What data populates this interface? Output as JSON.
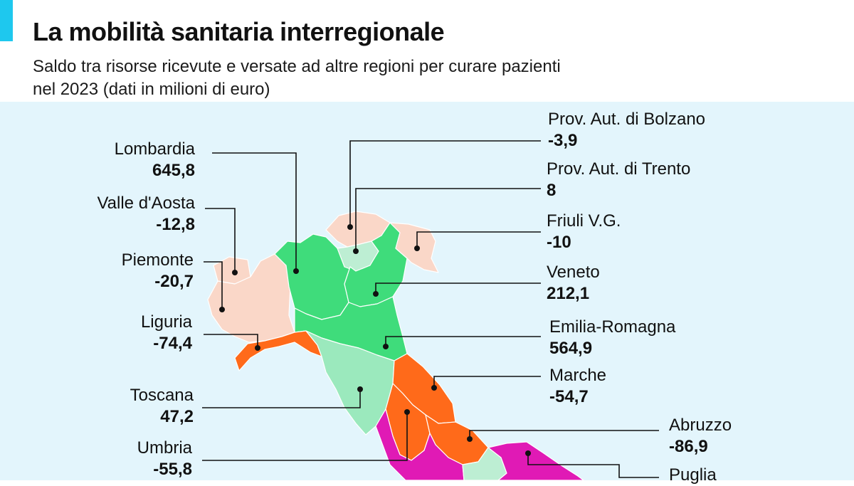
{
  "header": {
    "title": "La mobilità sanitaria interregionale",
    "subtitle_line1": "Saldo tra risorse ricevute e versate ad altre regioni per curare pazienti",
    "subtitle_line2": "nel 2023 (dati in milioni di euro)"
  },
  "colors": {
    "accent": "#1ec8ee",
    "sea": "#e3f5fc",
    "strong_positive": "#3fdc7b",
    "mild_positive": "#bdeed3",
    "positive_light": "#9be9bd",
    "slight_negative": "#fad7c8",
    "negative": "#ff6a1a",
    "strong_negative": "#e01ab5"
  },
  "regions": {
    "lombardia": {
      "name": "Lombardia",
      "value": "645,8"
    },
    "valle_aosta": {
      "name": "Valle d'Aosta",
      "value": "-12,8"
    },
    "piemonte": {
      "name": "Piemonte",
      "value": "-20,7"
    },
    "liguria": {
      "name": "Liguria",
      "value": "-74,4"
    },
    "toscana": {
      "name": "Toscana",
      "value": "47,2"
    },
    "umbria": {
      "name": "Umbria",
      "value": "-55,8"
    },
    "bolzano": {
      "name": "Prov. Aut. di Bolzano",
      "value": "-3,9"
    },
    "trento": {
      "name": "Prov. Aut. di Trento",
      "value": "8"
    },
    "friuli": {
      "name": "Friuli V.G.",
      "value": "-10"
    },
    "veneto": {
      "name": "Veneto",
      "value": "212,1"
    },
    "emilia": {
      "name": "Emilia-Romagna",
      "value": "564,9"
    },
    "marche": {
      "name": "Marche",
      "value": "-54,7"
    },
    "abruzzo": {
      "name": "Abruzzo",
      "value": "-86,9"
    },
    "puglia": {
      "name": "Puglia",
      "value": ""
    }
  }
}
